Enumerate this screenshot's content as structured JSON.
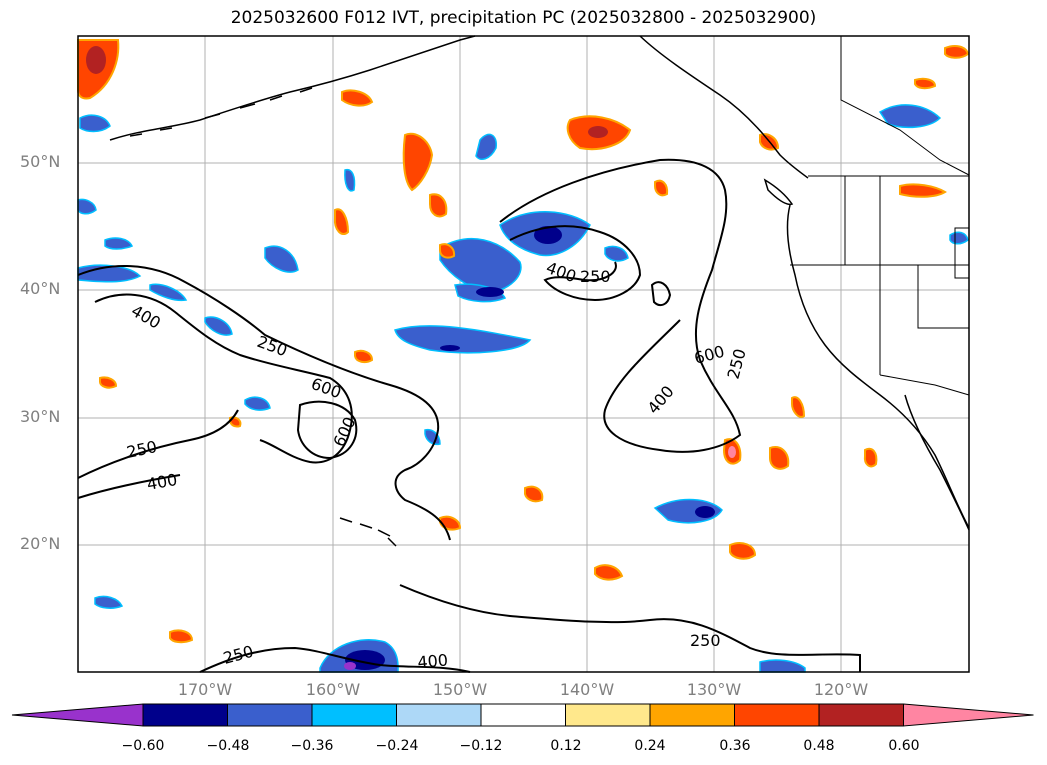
{
  "title": "2025032600 F012 IVT, precipitation PC (2025032800 - 2025032900)",
  "lat_labels": [
    "50°N",
    "40°N",
    "30°N",
    "20°N"
  ],
  "lon_labels": [
    "170°W",
    "160°W",
    "150°W",
    "140°W",
    "130°W",
    "120°W"
  ],
  "contour_labels": [
    "250",
    "400",
    "600",
    "250",
    "400",
    "600",
    "250",
    "400",
    "400",
    "250",
    "600",
    "400",
    "250",
    "250",
    "400",
    "250"
  ],
  "colorbar": {
    "ticks": [
      "−0.60",
      "−0.48",
      "−0.36",
      "−0.24",
      "−0.12",
      "0.12",
      "0.24",
      "0.36",
      "0.48",
      "0.60"
    ],
    "colors": [
      "#9932cc",
      "#00008b",
      "#3a5fcd",
      "#00bfff",
      "#add8f7",
      "#ffffff",
      "#ffe88c",
      "#ffa500",
      "#ff4500",
      "#b22222",
      "#ff85a2"
    ]
  },
  "map": {
    "extent_lon": [
      -180,
      -110
    ],
    "extent_lat": [
      10,
      60
    ],
    "gridlines": true,
    "colors": {
      "positive_fill": "#ff4500",
      "positive_edge": "#ffa500",
      "negative_fill": "#3a5fcd",
      "negative_edge": "#00bfff"
    }
  }
}
